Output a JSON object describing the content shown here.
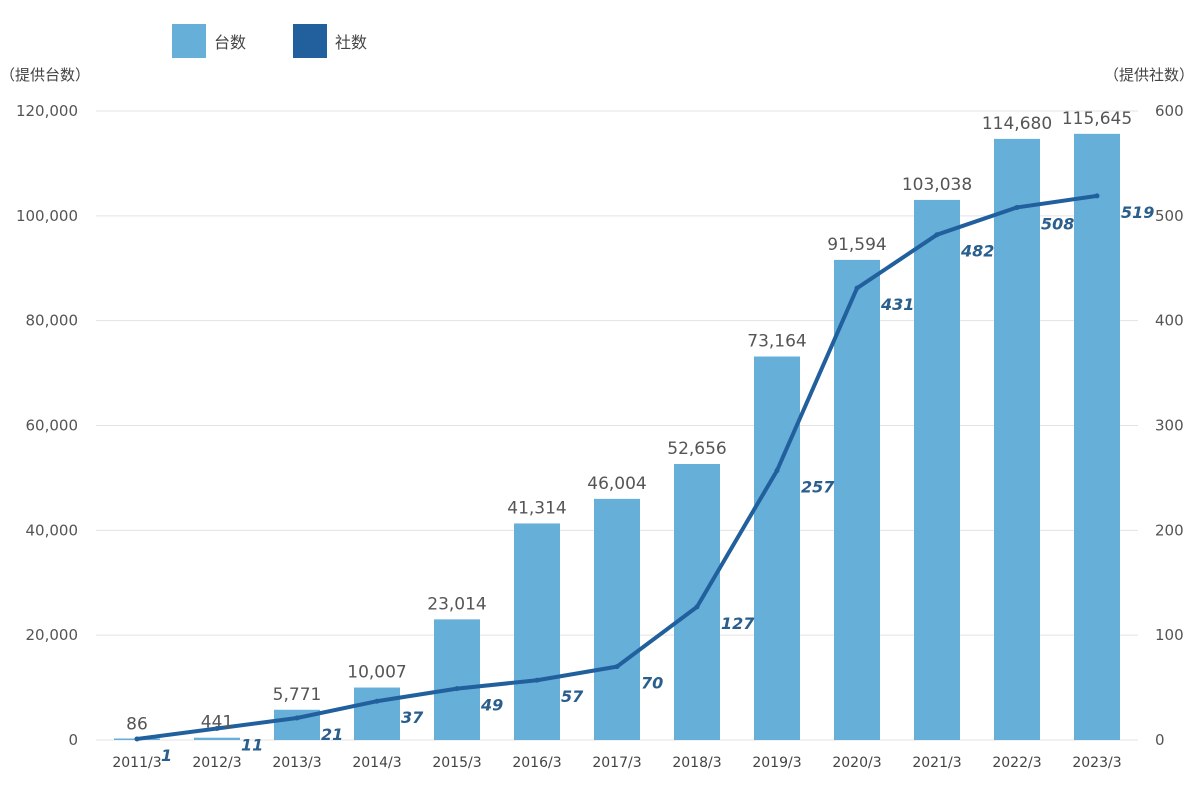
{
  "chart_data": {
    "type": "bar",
    "categories": [
      "2011/3",
      "2012/3",
      "2013/3",
      "2014/3",
      "2015/3",
      "2016/3",
      "2017/3",
      "2018/3",
      "2019/3",
      "2020/3",
      "2021/3",
      "2022/3",
      "2023/3"
    ],
    "series": [
      {
        "name": "台数",
        "type": "bar",
        "axis": "left",
        "color": "#66afd9",
        "values": [
          86,
          441,
          5771,
          10007,
          23014,
          41314,
          46004,
          52656,
          73164,
          91594,
          103038,
          114680,
          115645
        ],
        "labels": [
          "86",
          "441",
          "5,771",
          "10,007",
          "23,014",
          "41,314",
          "46,004",
          "52,656",
          "73,164",
          "91,594",
          "103,038",
          "114,680",
          "115,645"
        ]
      },
      {
        "name": "社数",
        "type": "line",
        "axis": "right",
        "color": "#21609d",
        "label_color": "#2a5e8c",
        "values": [
          1,
          11,
          21,
          37,
          49,
          57,
          70,
          127,
          257,
          431,
          482,
          508,
          519
        ],
        "labels": [
          "1",
          "11",
          "21",
          "37",
          "49",
          "57",
          "70",
          "127",
          "257",
          "431",
          "482",
          "508",
          "519"
        ]
      }
    ],
    "y_left": {
      "label": "（提供台数）",
      "ylim": [
        0,
        120000
      ],
      "ticks": [
        0,
        20000,
        40000,
        60000,
        80000,
        100000,
        120000
      ],
      "tick_labels": [
        "0",
        "20,000",
        "40,000",
        "60,000",
        "80,000",
        "100,000",
        "120,000"
      ]
    },
    "y_right": {
      "label": "（提供社数）",
      "ylim": [
        0,
        600
      ],
      "ticks": [
        0,
        100,
        200,
        300,
        400,
        500,
        600
      ],
      "tick_labels": [
        "0",
        "100",
        "200",
        "300",
        "400",
        "500",
        "600"
      ]
    },
    "grid": true,
    "legend_position": "top-left"
  }
}
